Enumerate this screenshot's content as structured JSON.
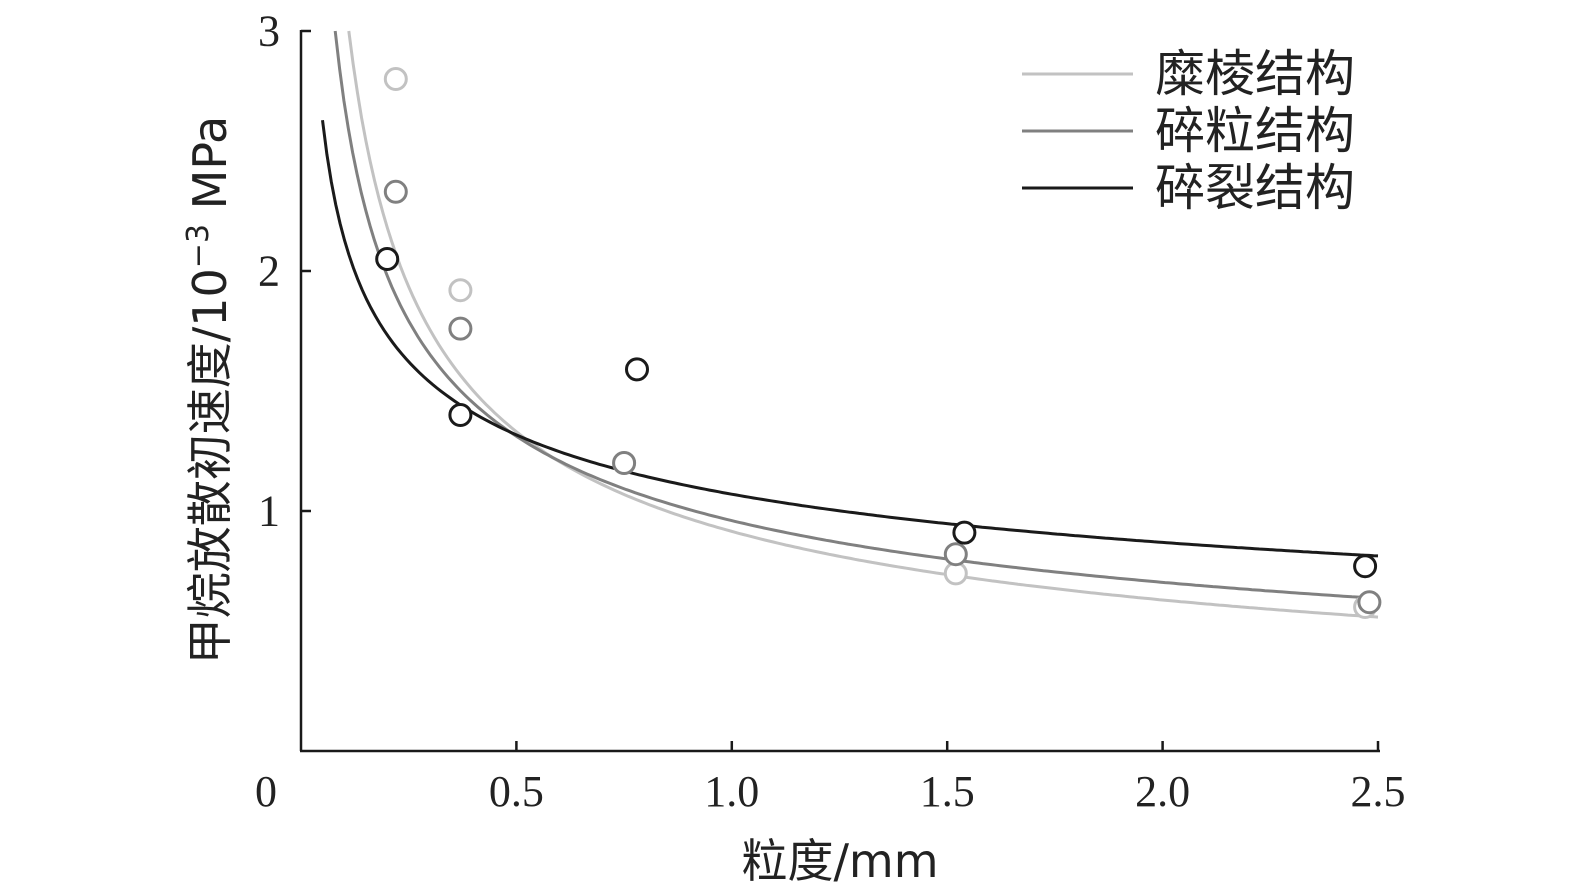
{
  "chart_data": {
    "type": "scatter",
    "xlabel": "粒度/mm",
    "ylabel_main": "甲烷放散初速度/10",
    "ylabel_exp": "−3",
    "ylabel_unit": " MPa",
    "xlim": [
      0,
      2.5
    ],
    "ylim": [
      0,
      3
    ],
    "x_ticks": [
      {
        "value": 0,
        "label": "0"
      },
      {
        "value": 0.5,
        "label": "0.5"
      },
      {
        "value": 1.0,
        "label": "1.0"
      },
      {
        "value": 1.5,
        "label": "1.5"
      },
      {
        "value": 2.0,
        "label": "2.0"
      },
      {
        "value": 2.5,
        "label": "2.5"
      }
    ],
    "y_ticks": [
      {
        "value": 1,
        "label": "1"
      },
      {
        "value": 2,
        "label": "2"
      },
      {
        "value": 3,
        "label": "3"
      }
    ],
    "legend_position": "top-right",
    "grid": false,
    "series": [
      {
        "name": "糜棱结构",
        "color": "#c2c2c2",
        "fit": {
          "a": 0.915,
          "b": -0.54
        },
        "points": [
          {
            "x": 0.22,
            "y": 2.8
          },
          {
            "x": 0.37,
            "y": 1.92
          },
          {
            "x": 0.75,
            "y": 1.2
          },
          {
            "x": 1.52,
            "y": 0.74
          },
          {
            "x": 2.47,
            "y": 0.6
          }
        ]
      },
      {
        "name": "碎粒结构",
        "color": "#808080",
        "fit": {
          "a": 0.96,
          "b": -0.45
        },
        "points": [
          {
            "x": 0.22,
            "y": 2.33
          },
          {
            "x": 0.37,
            "y": 1.76
          },
          {
            "x": 0.75,
            "y": 1.2
          },
          {
            "x": 1.52,
            "y": 0.82
          },
          {
            "x": 2.48,
            "y": 0.62
          }
        ]
      },
      {
        "name": "碎裂结构",
        "color": "#1a1a1a",
        "fit": {
          "a": 1.07,
          "b": -0.3
        },
        "points": [
          {
            "x": 0.2,
            "y": 2.05
          },
          {
            "x": 0.37,
            "y": 1.4
          },
          {
            "x": 0.78,
            "y": 1.59
          },
          {
            "x": 1.54,
            "y": 0.91
          },
          {
            "x": 2.47,
            "y": 0.77
          }
        ]
      }
    ]
  }
}
